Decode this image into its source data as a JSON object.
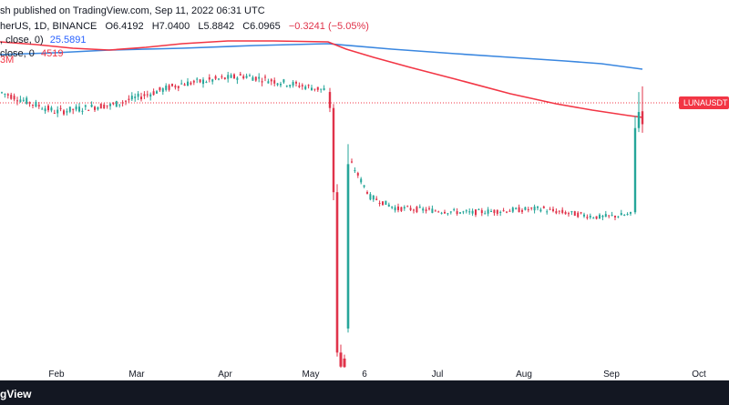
{
  "header": {
    "published": "sh published on TradingView.com, Sep 11, 2022 06:31 UTC",
    "symbol": "herUS, 1D, BINANCE",
    "open": "O6.4192",
    "high": "H7.0400",
    "low": "L5.8842",
    "close": "C6.0965",
    "change": "−0.3241 (−5.05%)",
    "ma1_label": ", close, 0)",
    "ma1_value": "25.5891",
    "ma2_label": "close, 0",
    "ma2_value": "4519",
    "ma3_value": "3M"
  },
  "footer": {
    "brand": "gView"
  },
  "colors": {
    "up": "#26a69a",
    "down": "#e0334a",
    "ma_blue": "#3a87e0",
    "ma_red": "#f23645",
    "price_tag": "#f23645"
  },
  "chart_data": {
    "type": "candlestick",
    "symbol_tag": "LUNAUSDT",
    "x_ticks": [
      "Feb",
      "Mar",
      "Apr",
      "May",
      "6",
      "Jul",
      "Aug",
      "Sep",
      "Oct"
    ],
    "candles_sampled": [
      {
        "t": "Jan 20",
        "o": 6.3,
        "h": 6.6,
        "l": 6.0,
        "c": 6.2
      },
      {
        "t": "Feb 05",
        "o": 6.1,
        "h": 6.5,
        "l": 5.9,
        "c": 6.2
      },
      {
        "t": "Feb 20",
        "o": 6.2,
        "h": 6.7,
        "l": 6.0,
        "c": 6.5
      },
      {
        "t": "Mar 05",
        "o": 6.5,
        "h": 7.0,
        "l": 6.3,
        "c": 6.9
      },
      {
        "t": "Mar 20",
        "o": 6.9,
        "h": 7.3,
        "l": 6.7,
        "c": 7.1
      },
      {
        "t": "Apr 05",
        "o": 7.1,
        "h": 7.6,
        "l": 6.9,
        "c": 7.3
      },
      {
        "t": "Apr 20",
        "o": 7.2,
        "h": 7.4,
        "l": 6.8,
        "c": 7.0
      },
      {
        "t": "May 05",
        "o": 7.0,
        "h": 7.2,
        "l": 6.6,
        "c": 6.7
      },
      {
        "t": "May 09",
        "o": 6.7,
        "h": 6.8,
        "l": 4.0,
        "c": 4.3
      },
      {
        "t": "May 11",
        "o": 4.2,
        "h": 4.4,
        "l": 0.1,
        "c": 0.3
      },
      {
        "t": "May 14",
        "o": 0.3,
        "h": 0.5,
        "l": 0.02,
        "c": 0.05
      },
      {
        "t": "May 28",
        "o": 1.0,
        "h": 5.5,
        "l": 0.9,
        "c": 5.0
      },
      {
        "t": "Jun 10",
        "o": 4.8,
        "h": 5.1,
        "l": 3.8,
        "c": 4.0
      },
      {
        "t": "Jul 01",
        "o": 3.9,
        "h": 4.2,
        "l": 3.6,
        "c": 3.8
      },
      {
        "t": "Aug 01",
        "o": 3.8,
        "h": 4.1,
        "l": 3.6,
        "c": 3.9
      },
      {
        "t": "Aug 25",
        "o": 3.7,
        "h": 3.9,
        "l": 3.5,
        "c": 3.6
      },
      {
        "t": "Sep 07",
        "o": 3.9,
        "h": 6.2,
        "l": 3.8,
        "c": 6.0
      },
      {
        "t": "Sep 10",
        "o": 6.4192,
        "h": 7.04,
        "l": 5.8842,
        "c": 6.0965
      }
    ],
    "series": [
      {
        "name": "MA 25.5891",
        "color": "#3a87e0"
      },
      {
        "name": "MA 4519",
        "color": "#f23645"
      }
    ]
  }
}
